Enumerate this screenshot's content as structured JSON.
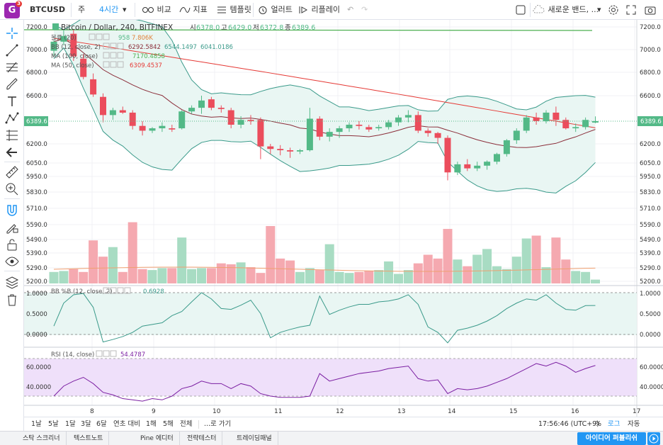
{
  "toolbar": {
    "logo_letter": "G",
    "logo_badge": "3",
    "symbol": "BTCUSD",
    "week": "주",
    "interval": "4시간",
    "compare": "비교",
    "indicators": "지표",
    "templates": "템플릿",
    "alert": "얼러트",
    "replay": "리플레이",
    "new_band": "새로운 밴드, ..."
  },
  "legend": {
    "title": "Bitcoin / Dollar, 240, BITFINEX",
    "o_label": "시",
    "o": "6378.0",
    "h_label": "고",
    "h": "6429.0",
    "l_label": "저",
    "l": "6372.8",
    "c_label": "종",
    "c": "6389.6",
    "volume_label": "볼륨 (20)",
    "volume_v1": "958",
    "volume_v2": "7.806K",
    "bb_label": "BB (12, close, 2)",
    "bb_v1": "6292.5842",
    "bb_v2": "6544.1497",
    "bb_v3": "6041.0186",
    "ma100_label": "MA (100, close)",
    "ma100_v": "7170.4858",
    "ma50_label": "MA (50, close)",
    "ma50_v": "6309.4537"
  },
  "price_axis": {
    "ticks": [
      "7200.0",
      "7000.0",
      "6800.0",
      "6600.0",
      "6200.0",
      "6050.0",
      "5950.0",
      "5830.0",
      "5710.0",
      "5590.0",
      "5490.0",
      "5390.0",
      "5290.0",
      "5200.0"
    ],
    "last_price": "6389.6"
  },
  "bbb_pane": {
    "label": "BB %B (12, close, 2)",
    "value": "0.6928",
    "ticks": [
      "1.0000",
      "0.5000",
      "0.0000"
    ]
  },
  "rsi_pane": {
    "label": "RSI (14, close)",
    "value": "54.4787",
    "ticks": [
      "60.0000",
      "40.0000"
    ]
  },
  "time_axis": [
    "8",
    "9",
    "10",
    "11",
    "12",
    "13",
    "14",
    "15",
    "16",
    "17"
  ],
  "range_bar": {
    "ranges": [
      "1날",
      "5날",
      "1달",
      "3달",
      "6달",
      "연초 대비",
      "1해",
      "5해",
      "전체"
    ],
    "goto": "...로 가기",
    "clock": "17:56:46 (UTC+9)",
    "percent": "%",
    "log": "로그",
    "auto": "자동"
  },
  "tabs": [
    "스탁 스크리너",
    "텍스트노트",
    "Pine 에디터",
    "전략테스터",
    "트레이딩패널"
  ],
  "publish": "아이디어 퍼블리쉬",
  "colors": {
    "up": "#53b987",
    "down": "#eb4d5c",
    "bb_fill": "#e9f6f3",
    "bb_line": "#3a9a8a",
    "ma100": "#e53935",
    "ma50": "#8b2e3a",
    "rsi": "#7b1fa2",
    "rsi_band": "#efe0fa",
    "top_line": "#4caf50"
  },
  "chart_data": {
    "type": "candlestick",
    "symbol": "Bitcoin / Dollar, 240, BITFINEX",
    "y_range": [
      5200,
      7250
    ],
    "candles": [
      {
        "o": 6990,
        "h": 7080,
        "l": 6940,
        "c": 7070
      },
      {
        "o": 7070,
        "h": 7180,
        "l": 7040,
        "c": 7120
      },
      {
        "o": 7140,
        "h": 7180,
        "l": 6900,
        "c": 6940
      },
      {
        "o": 6920,
        "h": 6960,
        "l": 6740,
        "c": 6760
      },
      {
        "o": 6740,
        "h": 6790,
        "l": 6590,
        "c": 6610
      },
      {
        "o": 6590,
        "h": 6620,
        "l": 6380,
        "c": 6440
      },
      {
        "o": 6440,
        "h": 6500,
        "l": 6400,
        "c": 6480
      },
      {
        "o": 6480,
        "h": 6510,
        "l": 6450,
        "c": 6460
      },
      {
        "o": 6460,
        "h": 6480,
        "l": 6320,
        "c": 6350
      },
      {
        "o": 6350,
        "h": 6390,
        "l": 6270,
        "c": 6310
      },
      {
        "o": 6310,
        "h": 6340,
        "l": 6290,
        "c": 6330
      },
      {
        "o": 6330,
        "h": 6380,
        "l": 6300,
        "c": 6350
      },
      {
        "o": 6330,
        "h": 6360,
        "l": 6300,
        "c": 6320
      },
      {
        "o": 6330,
        "h": 6480,
        "l": 6320,
        "c": 6470
      },
      {
        "o": 6470,
        "h": 6520,
        "l": 6450,
        "c": 6500
      },
      {
        "o": 6500,
        "h": 6600,
        "l": 6450,
        "c": 6560
      },
      {
        "o": 6570,
        "h": 6590,
        "l": 6480,
        "c": 6500
      },
      {
        "o": 6500,
        "h": 6520,
        "l": 6460,
        "c": 6490
      },
      {
        "o": 6480,
        "h": 6500,
        "l": 6330,
        "c": 6360
      },
      {
        "o": 6360,
        "h": 6430,
        "l": 6330,
        "c": 6400
      },
      {
        "o": 6400,
        "h": 6440,
        "l": 6360,
        "c": 6390
      },
      {
        "o": 6400,
        "h": 6420,
        "l": 6080,
        "c": 6180
      },
      {
        "o": 6180,
        "h": 6200,
        "l": 6120,
        "c": 6160
      },
      {
        "o": 6160,
        "h": 6190,
        "l": 6110,
        "c": 6150
      },
      {
        "o": 6150,
        "h": 6170,
        "l": 6090,
        "c": 6140
      },
      {
        "o": 6140,
        "h": 6160,
        "l": 6120,
        "c": 6150
      },
      {
        "o": 6150,
        "h": 6500,
        "l": 6140,
        "c": 6410
      },
      {
        "o": 6410,
        "h": 6430,
        "l": 6230,
        "c": 6260
      },
      {
        "o": 6260,
        "h": 6330,
        "l": 6220,
        "c": 6300
      },
      {
        "o": 6300,
        "h": 6350,
        "l": 6250,
        "c": 6330
      },
      {
        "o": 6330,
        "h": 6380,
        "l": 6300,
        "c": 6360
      },
      {
        "o": 6360,
        "h": 6390,
        "l": 6320,
        "c": 6350
      },
      {
        "o": 6340,
        "h": 6360,
        "l": 6300,
        "c": 6320
      },
      {
        "o": 6330,
        "h": 6360,
        "l": 6310,
        "c": 6340
      },
      {
        "o": 6340,
        "h": 6400,
        "l": 6320,
        "c": 6380
      },
      {
        "o": 6380,
        "h": 6440,
        "l": 6350,
        "c": 6420
      },
      {
        "o": 6420,
        "h": 6480,
        "l": 6380,
        "c": 6440
      },
      {
        "o": 6440,
        "h": 6470,
        "l": 6290,
        "c": 6310
      },
      {
        "o": 6310,
        "h": 6330,
        "l": 6260,
        "c": 6290
      },
      {
        "o": 6290,
        "h": 6300,
        "l": 6200,
        "c": 6250
      },
      {
        "o": 6250,
        "h": 6270,
        "l": 5920,
        "c": 5980
      },
      {
        "o": 5980,
        "h": 6060,
        "l": 5960,
        "c": 6040
      },
      {
        "o": 6040,
        "h": 6080,
        "l": 5990,
        "c": 6010
      },
      {
        "o": 6010,
        "h": 6060,
        "l": 5990,
        "c": 6030
      },
      {
        "o": 6030,
        "h": 6070,
        "l": 6000,
        "c": 6060
      },
      {
        "o": 6060,
        "h": 6130,
        "l": 6040,
        "c": 6120
      },
      {
        "o": 6120,
        "h": 6240,
        "l": 6100,
        "c": 6230
      },
      {
        "o": 6230,
        "h": 6330,
        "l": 6200,
        "c": 6310
      },
      {
        "o": 6310,
        "h": 6440,
        "l": 6290,
        "c": 6420
      },
      {
        "o": 6420,
        "h": 6460,
        "l": 6360,
        "c": 6390
      },
      {
        "o": 6390,
        "h": 6480,
        "l": 6370,
        "c": 6460
      },
      {
        "o": 6460,
        "h": 6510,
        "l": 6350,
        "c": 6400
      },
      {
        "o": 6400,
        "h": 6420,
        "l": 6320,
        "c": 6330
      },
      {
        "o": 6330,
        "h": 6370,
        "l": 6300,
        "c": 6340
      },
      {
        "o": 6340,
        "h": 6420,
        "l": 6320,
        "c": 6400
      },
      {
        "o": 6378,
        "h": 6429,
        "l": 6372.8,
        "c": 6389.6
      }
    ],
    "volume": [
      1.2,
      1.3,
      1.5,
      1.2,
      4.5,
      2.8,
      3.8,
      1.2,
      6.4,
      1.5,
      1.4,
      1.6,
      1.6,
      4.8,
      1.5,
      1.6,
      1.6,
      2.1,
      2.0,
      2.2,
      1.7,
      1.1,
      6.0,
      2.6,
      2.4,
      1.2,
      1.6,
      1.4,
      4.1,
      1.2,
      1.1,
      1.2,
      1.3,
      1.4,
      2.3,
      1.0,
      1.4,
      2.1,
      3.0,
      2.6,
      5.7,
      2.5,
      1.8,
      3.0,
      3.6,
      1.8,
      1.5,
      2.8,
      4.7,
      5.0,
      1.7,
      4.8,
      2.5,
      1.3,
      1.2,
      0.4
    ],
    "bbb": [
      0.2,
      0.75,
      0.95,
      0.98,
      0.65,
      -0.18,
      -0.12,
      -0.05,
      0.05,
      0.2,
      0.24,
      0.28,
      0.45,
      0.55,
      0.78,
      1.0,
      0.85,
      0.62,
      0.6,
      0.7,
      0.82,
      0.5,
      -0.08,
      0.05,
      0.12,
      0.18,
      0.22,
      0.92,
      0.48,
      0.58,
      0.66,
      0.72,
      0.72,
      0.78,
      0.8,
      0.85,
      0.95,
      0.72,
      0.18,
      0.05,
      -0.2,
      0.1,
      0.15,
      0.22,
      0.32,
      0.45,
      0.62,
      0.75,
      0.85,
      0.82,
      0.95,
      0.75,
      0.6,
      0.58,
      0.69,
      0.6928
    ],
    "rsi": [
      30,
      38,
      42,
      45,
      40,
      33,
      31,
      28,
      27,
      26,
      28,
      27,
      30,
      36,
      38,
      42,
      40,
      40,
      36,
      40,
      38,
      32,
      30,
      29,
      29,
      29,
      30,
      48,
      42,
      44,
      46,
      48,
      49,
      50,
      52,
      53,
      54,
      44,
      42,
      43,
      32,
      36,
      35,
      36,
      38,
      41,
      44,
      48,
      52,
      56,
      54,
      57,
      54,
      49,
      52,
      54.4787
    ]
  }
}
